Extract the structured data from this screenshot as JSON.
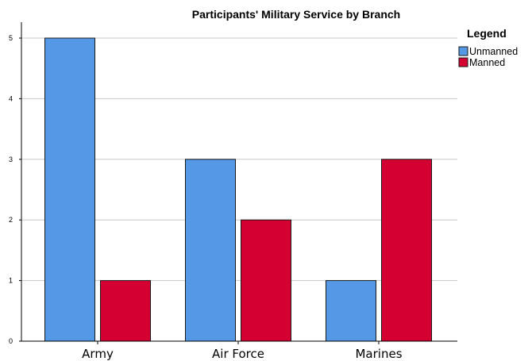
{
  "chart_data": {
    "type": "bar",
    "title": "Participants' Military Service by Branch",
    "categories": [
      "Army",
      "Air Force",
      "Marines"
    ],
    "series": [
      {
        "name": "Unmanned",
        "values": [
          5,
          3,
          1
        ],
        "color": "#5599e6"
      },
      {
        "name": "Manned",
        "values": [
          1,
          2,
          3
        ],
        "color": "#d50032"
      }
    ],
    "ylim": [
      0,
      5
    ],
    "yticks": [
      "0",
      "1",
      "2",
      "3",
      "4",
      "5"
    ],
    "grid": true,
    "legend": {
      "title": "Legend",
      "placement": "top-right"
    },
    "xlabel": "",
    "ylabel": ""
  }
}
